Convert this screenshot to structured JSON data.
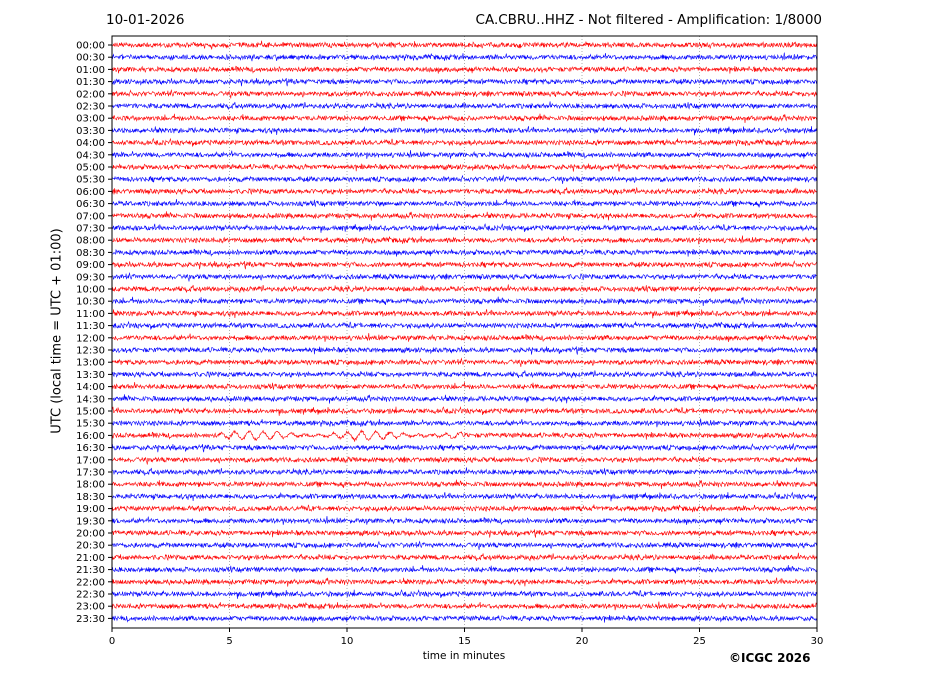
{
  "header": {
    "date": "10-01-2026",
    "title": "CA.CBRU..HHZ - Not filtered - Amplification: 1/8000"
  },
  "footer": {
    "copyright": "©ICGC 2026"
  },
  "chart_data": {
    "type": "line",
    "xlabel": "time in minutes",
    "ylabel": "UTC (local time = UTC + 01:00)",
    "xlim": [
      0,
      30
    ],
    "x_ticks": [
      0,
      5,
      10,
      15,
      20,
      25,
      30
    ],
    "grid": "vertical dotted lines at x ticks",
    "row_labels": [
      "00:00",
      "00:30",
      "01:00",
      "01:30",
      "02:00",
      "02:30",
      "03:00",
      "03:30",
      "04:00",
      "04:30",
      "05:00",
      "05:30",
      "06:00",
      "06:30",
      "07:00",
      "07:30",
      "08:00",
      "08:30",
      "09:00",
      "09:30",
      "10:00",
      "10:30",
      "11:00",
      "11:30",
      "12:00",
      "12:30",
      "13:00",
      "13:30",
      "14:00",
      "14:30",
      "15:00",
      "15:30",
      "16:00",
      "16:30",
      "17:00",
      "17:30",
      "18:00",
      "18:30",
      "19:00",
      "19:30",
      "20:00",
      "20:30",
      "21:00",
      "21:30",
      "22:00",
      "22:30",
      "23:00",
      "23:30"
    ],
    "trace_colors": [
      "#ff0000",
      "#0000ff"
    ],
    "highlight_row": "16:00",
    "highlight_burst_minutes": [
      4.5,
      15
    ]
  }
}
